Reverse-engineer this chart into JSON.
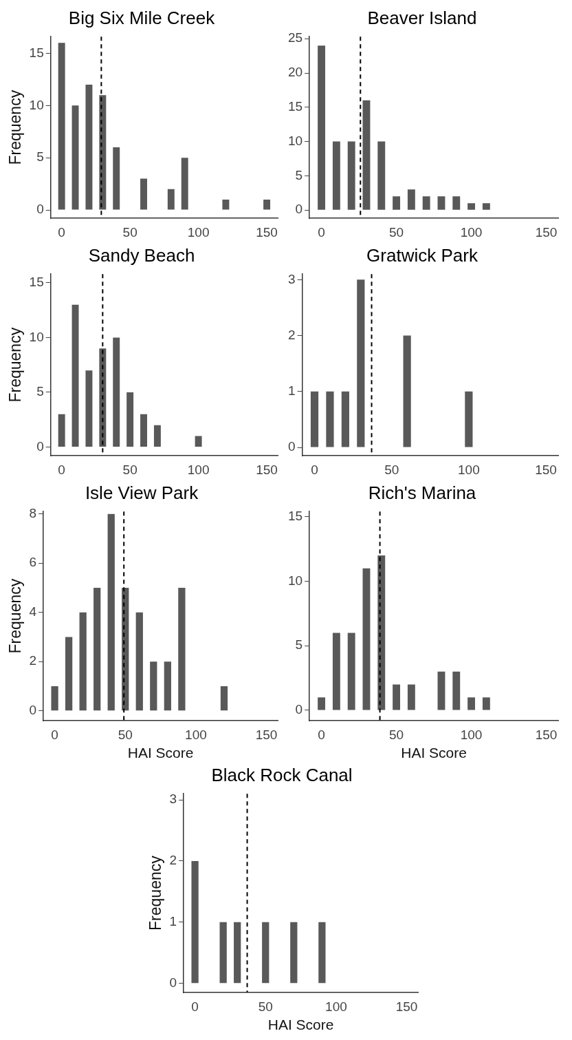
{
  "chart_data": [
    {
      "type": "bar",
      "title": "Big Six Mile Creek",
      "ylabel": "Frequency",
      "x": [
        0,
        10,
        20,
        30,
        40,
        60,
        80,
        90,
        120,
        150
      ],
      "values": [
        16,
        10,
        12,
        11,
        6,
        3,
        2,
        5,
        1,
        1
      ],
      "color": "#595959",
      "xlim": [
        -8,
        158
      ],
      "xticks": [
        0,
        50,
        100,
        150
      ],
      "ylim": [
        -0.8,
        16.6
      ],
      "yticks": [
        0,
        5,
        10,
        15
      ],
      "ref_lines": [
        {
          "axis": "x",
          "value": 29,
          "color": "#000000",
          "line_style": "dashed"
        }
      ],
      "grid": false,
      "legend": false
    },
    {
      "type": "bar",
      "title": "Beaver Island",
      "x": [
        0,
        10,
        20,
        30,
        40,
        50,
        60,
        70,
        80,
        90,
        100,
        110
      ],
      "values": [
        24,
        10,
        10,
        16,
        10,
        2,
        3,
        2,
        2,
        2,
        1,
        1
      ],
      "color": "#595959",
      "xlim": [
        -8,
        158
      ],
      "xticks": [
        0,
        50,
        100,
        150
      ],
      "ylim": [
        -1.2,
        25.3
      ],
      "yticks": [
        0,
        5,
        10,
        15,
        20,
        25
      ],
      "ref_lines": [
        {
          "axis": "x",
          "value": 26,
          "color": "#000000",
          "line_style": "dashed"
        }
      ],
      "grid": false,
      "legend": false
    },
    {
      "type": "bar",
      "title": "Sandy Beach",
      "ylabel": "Frequency",
      "x": [
        0,
        10,
        20,
        30,
        40,
        50,
        60,
        70,
        100
      ],
      "values": [
        3,
        13,
        7,
        9,
        10,
        5,
        3,
        2,
        1
      ],
      "color": "#595959",
      "xlim": [
        -8,
        158
      ],
      "xticks": [
        0,
        50,
        100,
        150
      ],
      "ylim": [
        -0.8,
        15.8
      ],
      "yticks": [
        0,
        5,
        10,
        15
      ],
      "ref_lines": [
        {
          "axis": "x",
          "value": 30,
          "color": "#000000",
          "line_style": "dashed"
        }
      ],
      "grid": false,
      "legend": false
    },
    {
      "type": "bar",
      "title": "Gratwick Park",
      "x": [
        0,
        10,
        20,
        30,
        60,
        100
      ],
      "values": [
        1,
        1,
        1,
        3,
        2,
        1
      ],
      "color": "#595959",
      "xlim": [
        -8,
        158
      ],
      "xticks": [
        0,
        50,
        100,
        150
      ],
      "ylim": [
        -0.15,
        3.1
      ],
      "yticks": [
        0,
        1,
        2,
        3
      ],
      "ref_lines": [
        {
          "axis": "x",
          "value": 37,
          "color": "#000000",
          "line_style": "dashed"
        }
      ],
      "grid": false,
      "legend": false
    },
    {
      "type": "bar",
      "title": "Isle View Park",
      "xlabel": "HAI Score",
      "ylabel": "Frequency",
      "x": [
        0,
        10,
        20,
        30,
        40,
        50,
        60,
        70,
        80,
        90,
        120
      ],
      "values": [
        1,
        3,
        4,
        5,
        8,
        5,
        4,
        2,
        2,
        5,
        1
      ],
      "color": "#595959",
      "xlim": [
        -8,
        158
      ],
      "xticks": [
        0,
        50,
        100,
        150
      ],
      "ylim": [
        -0.4,
        8.1
      ],
      "yticks": [
        0,
        2,
        4,
        6,
        8
      ],
      "ref_lines": [
        {
          "axis": "x",
          "value": 49,
          "color": "#000000",
          "line_style": "dashed"
        }
      ],
      "grid": false,
      "legend": false
    },
    {
      "type": "bar",
      "title": "Rich's Marina",
      "xlabel": "HAI Score",
      "x": [
        0,
        10,
        20,
        30,
        40,
        50,
        60,
        80,
        90,
        100,
        110
      ],
      "values": [
        1,
        6,
        6,
        11,
        12,
        2,
        2,
        3,
        3,
        1,
        1
      ],
      "color": "#595959",
      "xlim": [
        -8,
        158
      ],
      "xticks": [
        0,
        50,
        100,
        150
      ],
      "ylim": [
        -0.8,
        15.4
      ],
      "yticks": [
        0,
        5,
        10,
        15
      ],
      "ref_lines": [
        {
          "axis": "x",
          "value": 39,
          "color": "#000000",
          "line_style": "dashed"
        }
      ],
      "grid": false,
      "legend": false
    },
    {
      "type": "bar",
      "title": "Black Rock Canal",
      "xlabel": "HAI Score",
      "ylabel": "Frequency",
      "x": [
        0,
        20,
        30,
        50,
        70,
        90
      ],
      "values": [
        2,
        1,
        1,
        1,
        1,
        1
      ],
      "color": "#595959",
      "xlim": [
        -8,
        158
      ],
      "xticks": [
        0,
        50,
        100,
        150
      ],
      "ylim": [
        -0.15,
        3.1
      ],
      "yticks": [
        0,
        1,
        2,
        3
      ],
      "ref_lines": [
        {
          "axis": "x",
          "value": 37,
          "color": "#000000",
          "line_style": "dashed"
        }
      ],
      "grid": false,
      "legend": false
    }
  ]
}
